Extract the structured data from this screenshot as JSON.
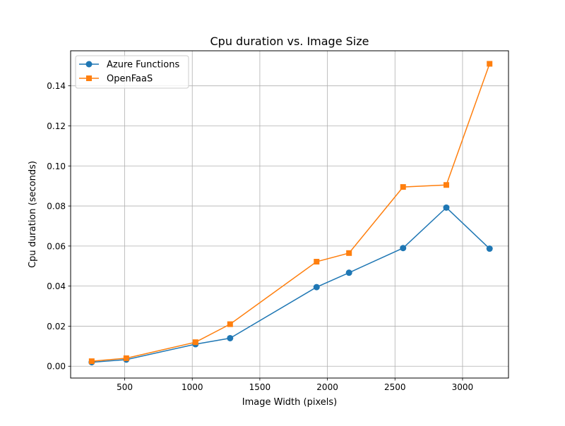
{
  "chart_data": {
    "type": "line",
    "title": "Cpu duration vs. Image Size",
    "xlabel": "Image Width (pixels)",
    "ylabel": "Cpu duration (seconds)",
    "xlim": [
      100,
      3340
    ],
    "ylim": [
      -0.0059,
      0.1575
    ],
    "xticks": [
      500,
      1000,
      1500,
      2000,
      2500,
      3000
    ],
    "yticks": [
      0.0,
      0.02,
      0.04,
      0.06,
      0.08,
      0.1,
      0.12,
      0.14
    ],
    "ytick_labels": [
      "0.00",
      "0.02",
      "0.04",
      "0.06",
      "0.08",
      "0.10",
      "0.12",
      "0.14"
    ],
    "grid": true,
    "legend_position": "top-left",
    "x": [
      256,
      512,
      1024,
      1280,
      1920,
      2160,
      2560,
      2880,
      3200
    ],
    "series": [
      {
        "name": "Azure Functions",
        "marker": "circle",
        "color": "#1f77b4",
        "values": [
          0.002,
          0.0033,
          0.011,
          0.014,
          0.0395,
          0.0467,
          0.059,
          0.0792,
          0.0587
        ]
      },
      {
        "name": "OpenFaaS",
        "marker": "square",
        "color": "#ff7f0e",
        "values": [
          0.0025,
          0.004,
          0.012,
          0.021,
          0.0522,
          0.0565,
          0.0895,
          0.0905,
          0.151
        ]
      }
    ]
  }
}
